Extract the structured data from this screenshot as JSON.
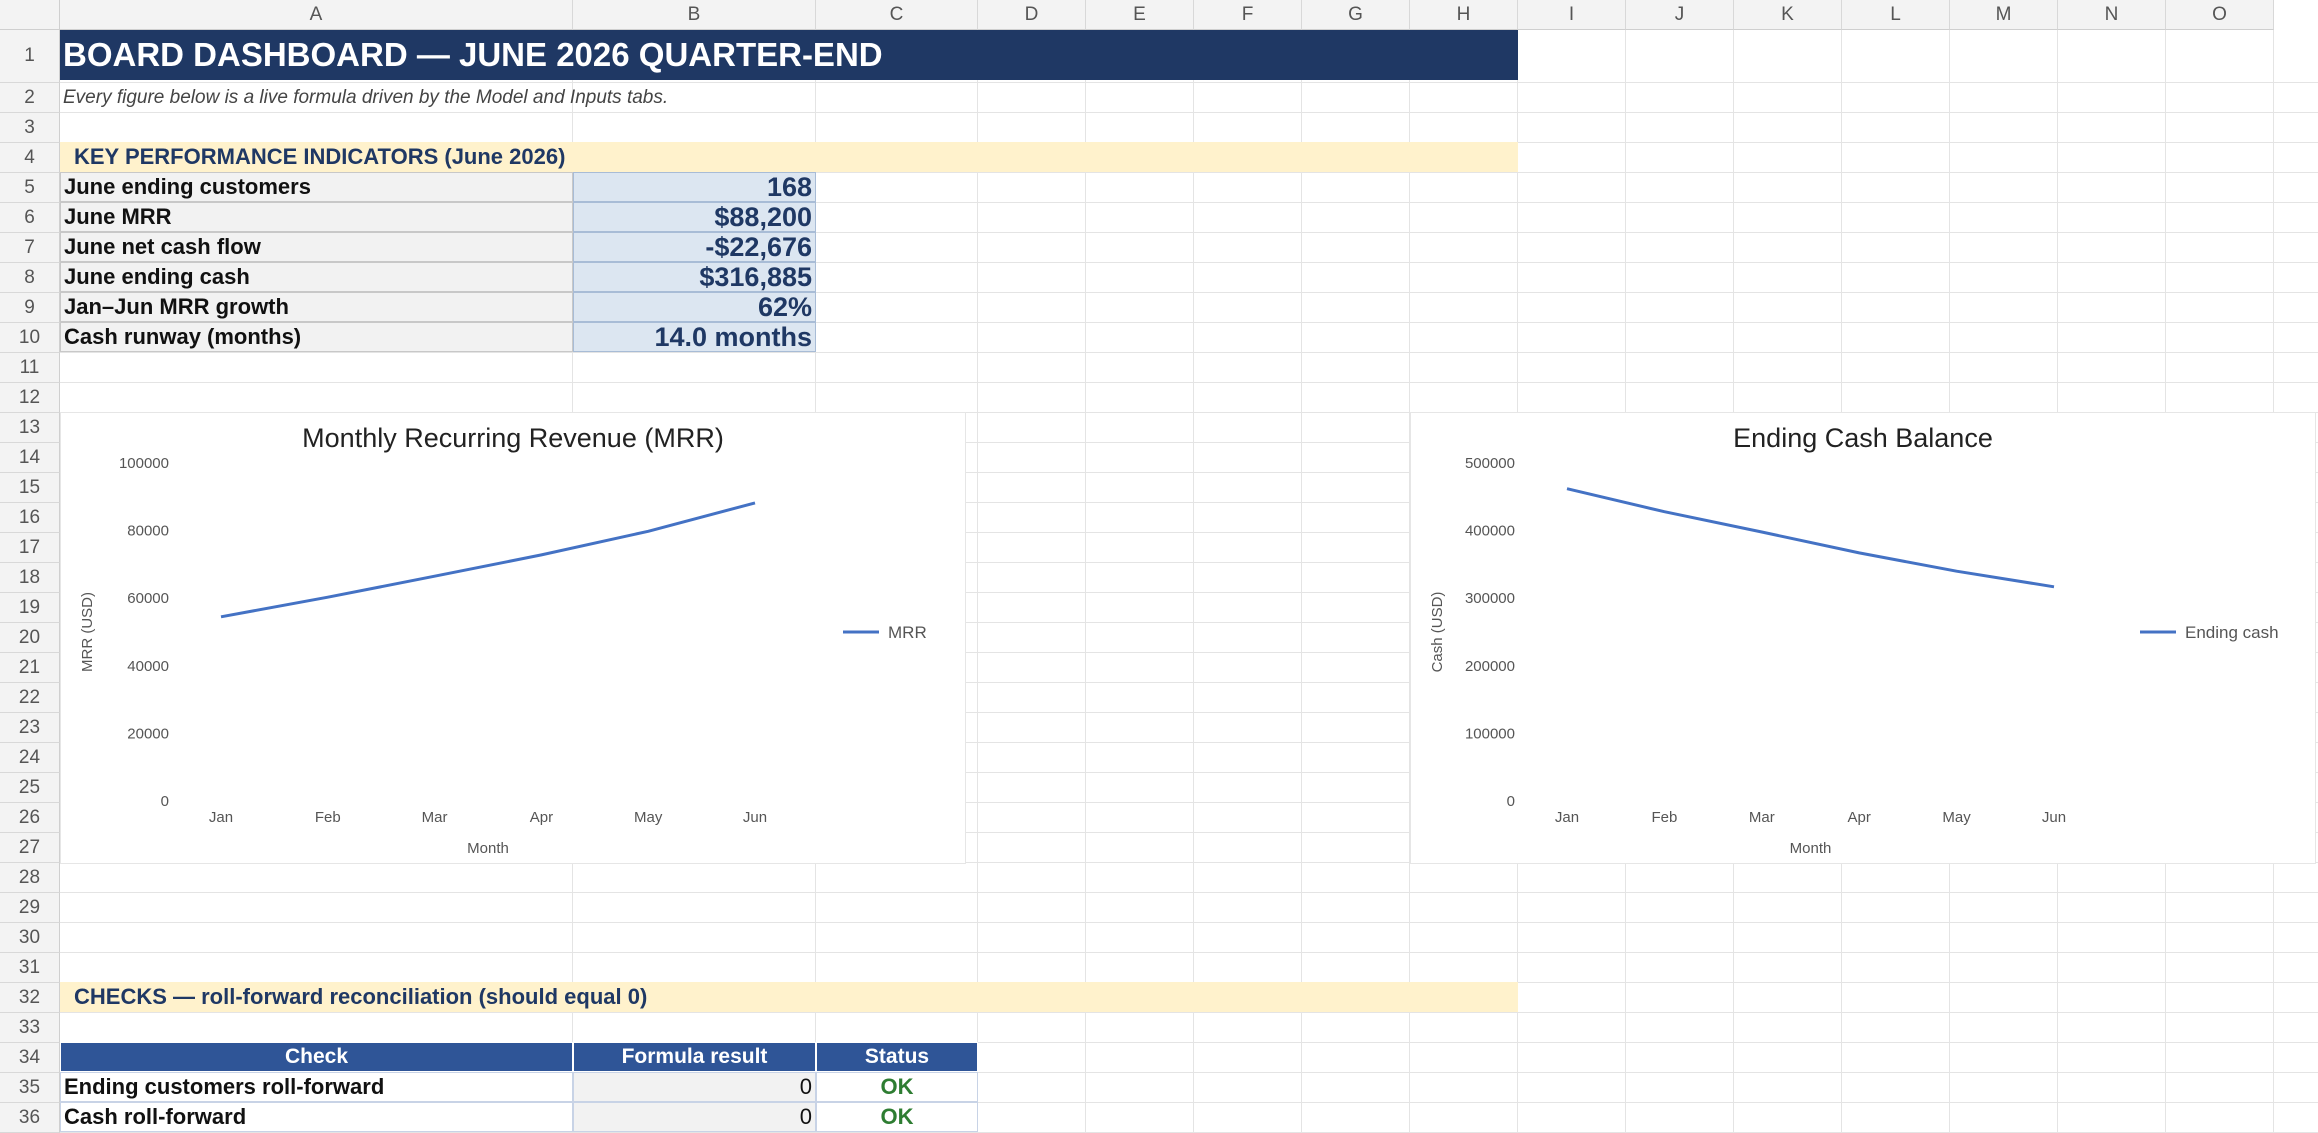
{
  "columns": [
    "A",
    "B",
    "C",
    "D",
    "E",
    "F",
    "G",
    "H",
    "I",
    "J",
    "K",
    "L",
    "M",
    "N",
    "O"
  ],
  "rows": [
    "1",
    "2",
    "3",
    "4",
    "5",
    "6",
    "7",
    "8",
    "9",
    "10",
    "11",
    "12",
    "13",
    "14",
    "15",
    "16",
    "17",
    "18",
    "19",
    "20",
    "21",
    "22",
    "23",
    "24",
    "25",
    "26",
    "27",
    "28",
    "29",
    "30",
    "31",
    "32",
    "33",
    "34",
    "35",
    "36"
  ],
  "title": "BOARD DASHBOARD — JUNE 2026 QUARTER-END",
  "subtitle": "Every figure below is a live formula driven by the Model and Inputs tabs.",
  "kpi": {
    "header": "KEY PERFORMANCE INDICATORS (June 2026)",
    "items": [
      {
        "label": "June ending customers",
        "value": "168"
      },
      {
        "label": "June MRR",
        "value": "$88,200"
      },
      {
        "label": "June net cash flow",
        "value": "-$22,676"
      },
      {
        "label": "June ending cash",
        "value": "$316,885"
      },
      {
        "label": "Jan–Jun MRR growth",
        "value": "62%"
      },
      {
        "label": "Cash runway (months)",
        "value": "14.0 months"
      }
    ]
  },
  "checks": {
    "header": "CHECKS — roll-forward reconciliation (should equal 0)",
    "columns": [
      "Check",
      "Formula result",
      "Status"
    ],
    "items": [
      {
        "name": "Ending customers roll-forward",
        "result": "0",
        "status": "OK"
      },
      {
        "name": "Cash roll-forward",
        "result": "0",
        "status": "OK"
      }
    ]
  },
  "chart_data": [
    {
      "type": "line",
      "title": "Monthly Recurring Revenue (MRR)",
      "xlabel": "Month",
      "ylabel": "MRR (USD)",
      "categories": [
        "Jan",
        "Feb",
        "Mar",
        "Apr",
        "May",
        "Jun"
      ],
      "series": [
        {
          "name": "MRR",
          "values": [
            54500,
            60300,
            66500,
            72800,
            79800,
            88200
          ]
        }
      ],
      "ylim": [
        0,
        100000
      ],
      "yticks": [
        0,
        20000,
        40000,
        60000,
        80000,
        100000
      ],
      "grid": false,
      "legend": "right",
      "color": "#4472c4"
    },
    {
      "type": "line",
      "title": "Ending Cash Balance",
      "xlabel": "Month",
      "ylabel": "Cash (USD)",
      "categories": [
        "Jan",
        "Feb",
        "Mar",
        "Apr",
        "May",
        "Jun"
      ],
      "series": [
        {
          "name": "Ending cash",
          "values": [
            462000,
            428000,
            398000,
            367000,
            340000,
            316885
          ]
        }
      ],
      "ylim": [
        0,
        500000
      ],
      "yticks": [
        0,
        100000,
        200000,
        300000,
        400000,
        500000
      ],
      "grid": false,
      "legend": "right",
      "color": "#4472c4"
    }
  ]
}
